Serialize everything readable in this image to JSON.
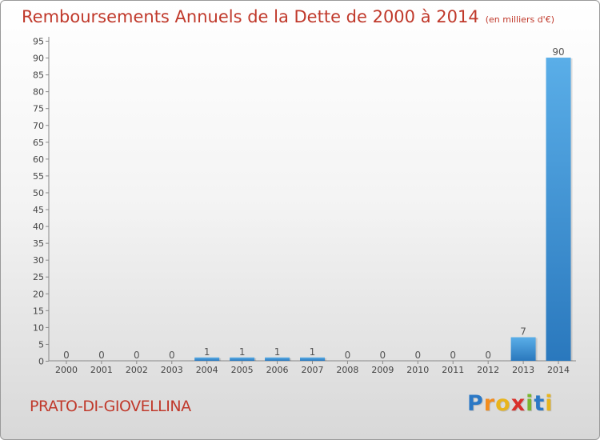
{
  "chart_data": {
    "type": "bar",
    "title": "Remboursements Annuels de la Dette de 2000 à 2014",
    "subtitle": "(en milliers d'€)",
    "categories": [
      "2000",
      "2001",
      "2002",
      "2003",
      "2004",
      "2005",
      "2006",
      "2007",
      "2008",
      "2009",
      "2010",
      "2011",
      "2012",
      "2013",
      "2014"
    ],
    "values": [
      0,
      0,
      0,
      0,
      1,
      1,
      1,
      1,
      0,
      0,
      0,
      0,
      0,
      7,
      90
    ],
    "ylim": [
      0,
      95
    ],
    "yticks": [
      0,
      5,
      10,
      15,
      20,
      25,
      30,
      35,
      40,
      45,
      50,
      55,
      60,
      65,
      70,
      75,
      80,
      85,
      90,
      95
    ],
    "grid": false,
    "bar_color": "#3a8fd6"
  },
  "commune": "PRATO-DI-GIOVELLINA",
  "logo": {
    "letters": [
      "P",
      "r",
      "o",
      "x",
      "i",
      "t",
      "i"
    ],
    "colors": [
      "#2b78c5",
      "#f28c1e",
      "#e8b41c",
      "#d9302b",
      "#7bb62e",
      "#2b78c5",
      "#e8b41c"
    ]
  }
}
